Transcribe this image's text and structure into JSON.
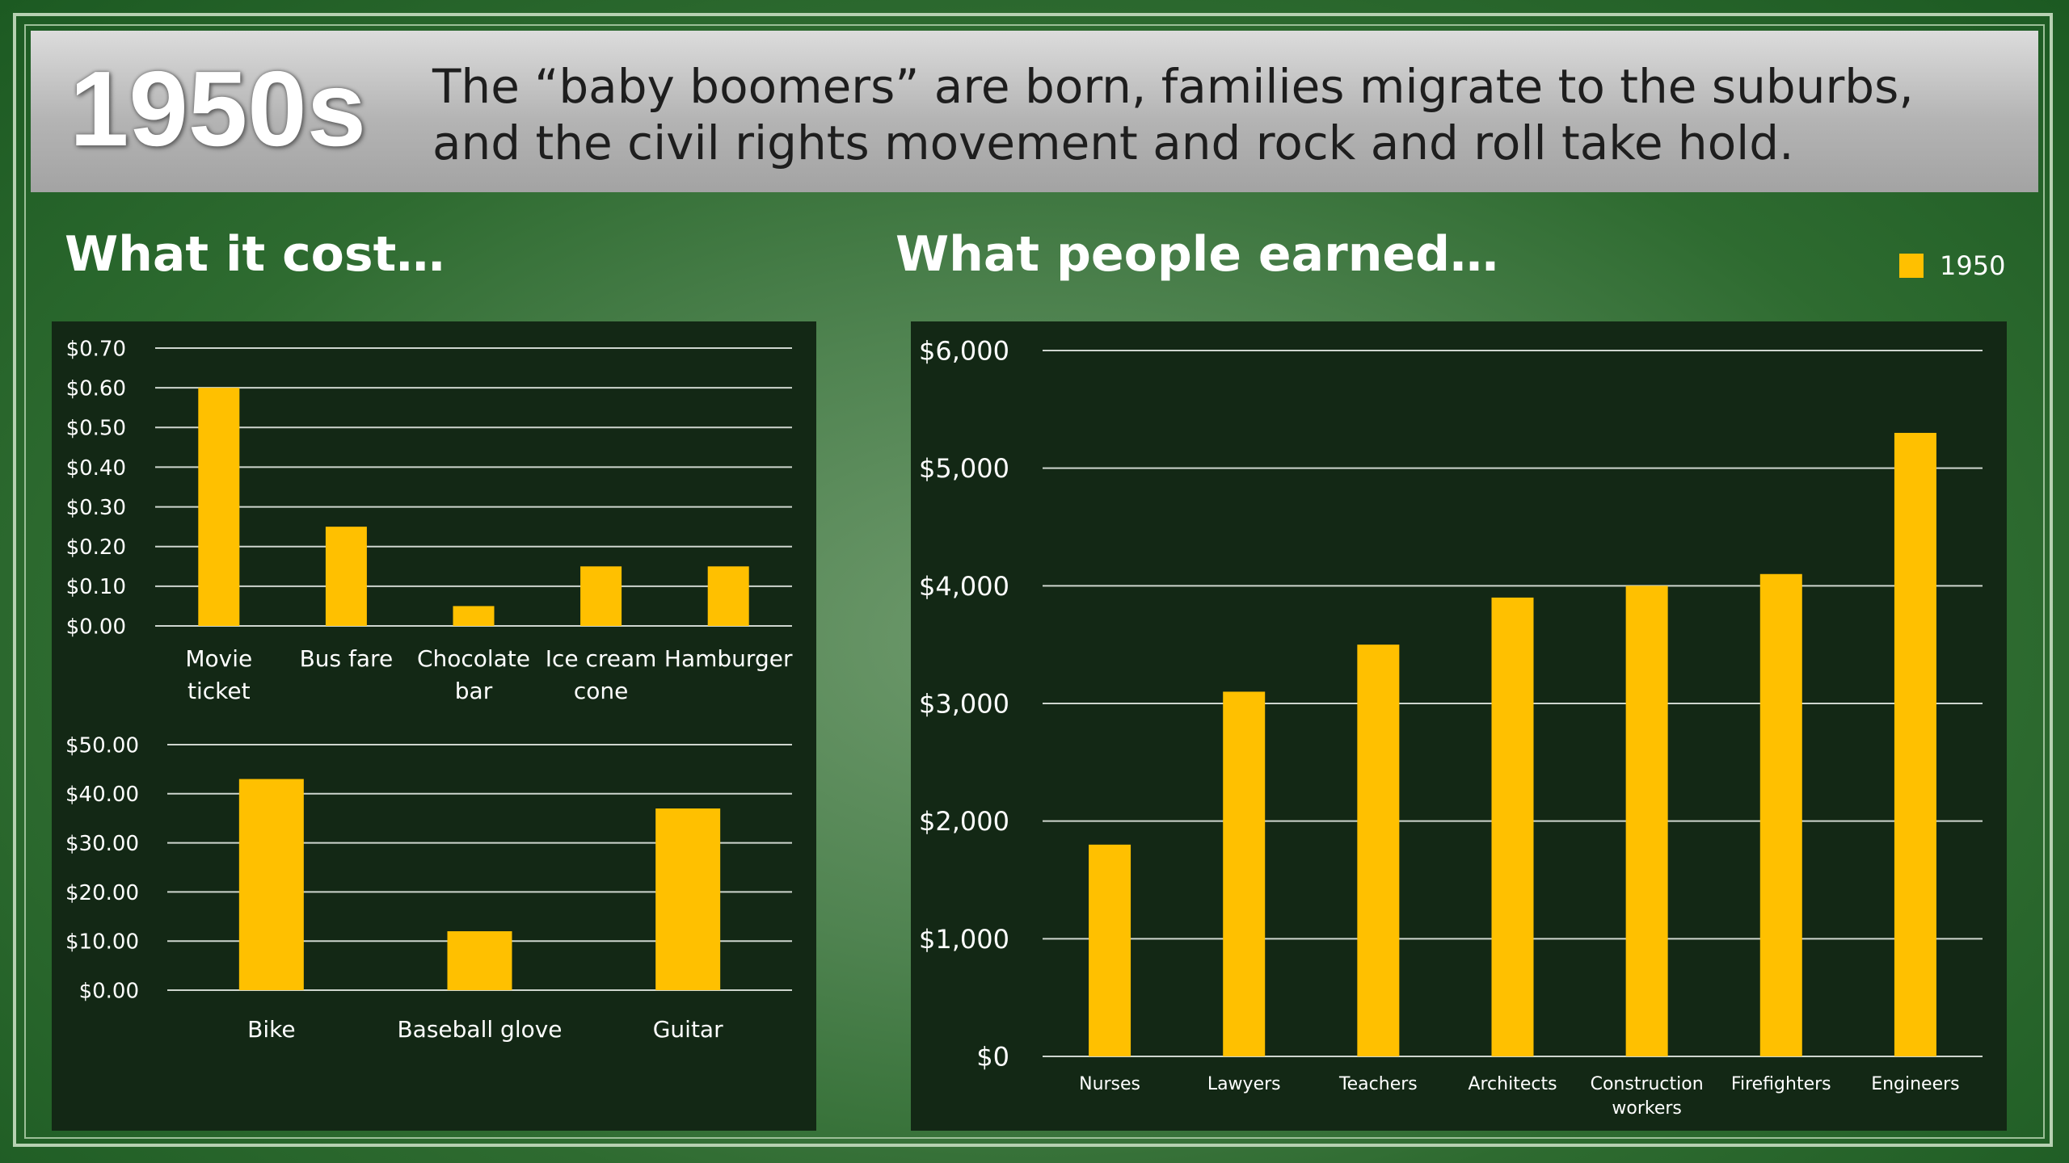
{
  "banner": {
    "decade": "1950s",
    "headline_line1": "The “baby boomers” are born, families migrate to the suburbs,",
    "headline_line2": "and the civil rights movement and rock and roll take hold."
  },
  "sections": {
    "cost_title": "What it cost…",
    "earned_title": "What people earned…"
  },
  "legend": {
    "label": "1950",
    "color": "#ffc000"
  },
  "colors": {
    "bar": "#ffc000",
    "panel": "#132815",
    "grid": "#cfd6cf",
    "background": "#4f8350"
  },
  "chart_data": [
    {
      "type": "bar",
      "title": "",
      "categories": [
        [
          "Movie",
          "ticket"
        ],
        [
          "Bus fare"
        ],
        [
          "Chocolate",
          "bar"
        ],
        [
          "Ice cream",
          "cone"
        ],
        [
          "Hamburger"
        ]
      ],
      "values": [
        0.6,
        0.25,
        0.05,
        0.15,
        0.15
      ],
      "ylim": [
        0,
        0.7
      ],
      "yticks": [
        0,
        0.1,
        0.2,
        0.3,
        0.4,
        0.5,
        0.6,
        0.7
      ],
      "ytick_labels": [
        "$0.00",
        "$0.10",
        "$0.20",
        "$0.30",
        "$0.40",
        "$0.50",
        "$0.60",
        "$0.70"
      ],
      "grid": true
    },
    {
      "type": "bar",
      "title": "",
      "categories": [
        [
          "Bike"
        ],
        [
          "Baseball glove"
        ],
        [
          "Guitar"
        ]
      ],
      "values": [
        43,
        12,
        37
      ],
      "ylim": [
        0,
        50
      ],
      "yticks": [
        0,
        10,
        20,
        30,
        40,
        50
      ],
      "ytick_labels": [
        "$0.00",
        "$10.00",
        "$20.00",
        "$30.00",
        "$40.00",
        "$50.00"
      ],
      "grid": true
    },
    {
      "type": "bar",
      "title": "",
      "categories": [
        [
          "Nurses"
        ],
        [
          "Lawyers"
        ],
        [
          "Teachers"
        ],
        [
          "Architects"
        ],
        [
          "Construction",
          "workers"
        ],
        [
          "Firefighters"
        ],
        [
          "Engineers"
        ]
      ],
      "series": [
        {
          "name": "1950",
          "values": [
            1800,
            3100,
            3500,
            3900,
            4000,
            4100,
            5300
          ]
        }
      ],
      "ylim": [
        0,
        6000
      ],
      "yticks": [
        0,
        1000,
        2000,
        3000,
        4000,
        5000,
        6000
      ],
      "ytick_labels": [
        "$0",
        "$1,000",
        "$2,000",
        "$3,000",
        "$4,000",
        "$5,000",
        "$6,000"
      ],
      "legend": "top-right",
      "grid": true
    }
  ]
}
